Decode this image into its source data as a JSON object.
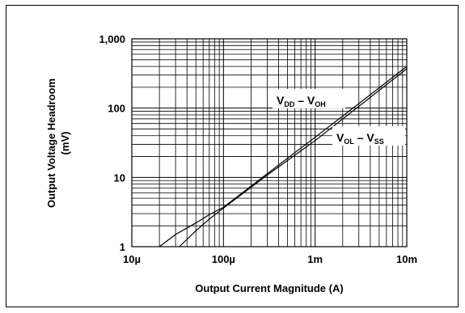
{
  "chart_data": {
    "type": "line",
    "title": "",
    "xlabel": "Output Current Magnitude (A)",
    "ylabel": "Output Voltage Headroom",
    "ylabel_unit": "(mV)",
    "x_scale": "log",
    "y_scale": "log",
    "xlim": [
      1e-05,
      0.01
    ],
    "ylim": [
      1,
      1000
    ],
    "grid": true,
    "x_ticks": [
      {
        "value": 1e-05,
        "label": "10µ"
      },
      {
        "value": 0.0001,
        "label": "100µ"
      },
      {
        "value": 0.001,
        "label": "1m"
      },
      {
        "value": 0.01,
        "label": "10m"
      }
    ],
    "y_ticks": [
      {
        "value": 1,
        "label": "1"
      },
      {
        "value": 10,
        "label": "10"
      },
      {
        "value": 100,
        "label": "100"
      },
      {
        "value": 1000,
        "label": "1,000"
      }
    ],
    "series": [
      {
        "name": "VDD – VOH",
        "label_main": "V",
        "label_sub1": "DD",
        "label_dash": " – V",
        "label_sub2": "OH",
        "x": [
          2e-05,
          3e-05,
          5e-05,
          7e-05,
          0.0001,
          0.0003,
          0.001,
          0.003,
          0.01
        ],
        "y": [
          1.0,
          1.5,
          2.2,
          2.9,
          3.7,
          11.3,
          38,
          116,
          400
        ]
      },
      {
        "name": "VOL – VSS",
        "label_main": "V",
        "label_sub1": "OL",
        "label_dash": " – V",
        "label_sub2": "SS",
        "x": [
          3.3e-05,
          5e-05,
          7e-05,
          0.0001,
          0.0003,
          0.001,
          0.003,
          0.01
        ],
        "y": [
          1.0,
          1.7,
          2.5,
          3.6,
          10.8,
          34,
          106,
          370
        ]
      }
    ]
  }
}
